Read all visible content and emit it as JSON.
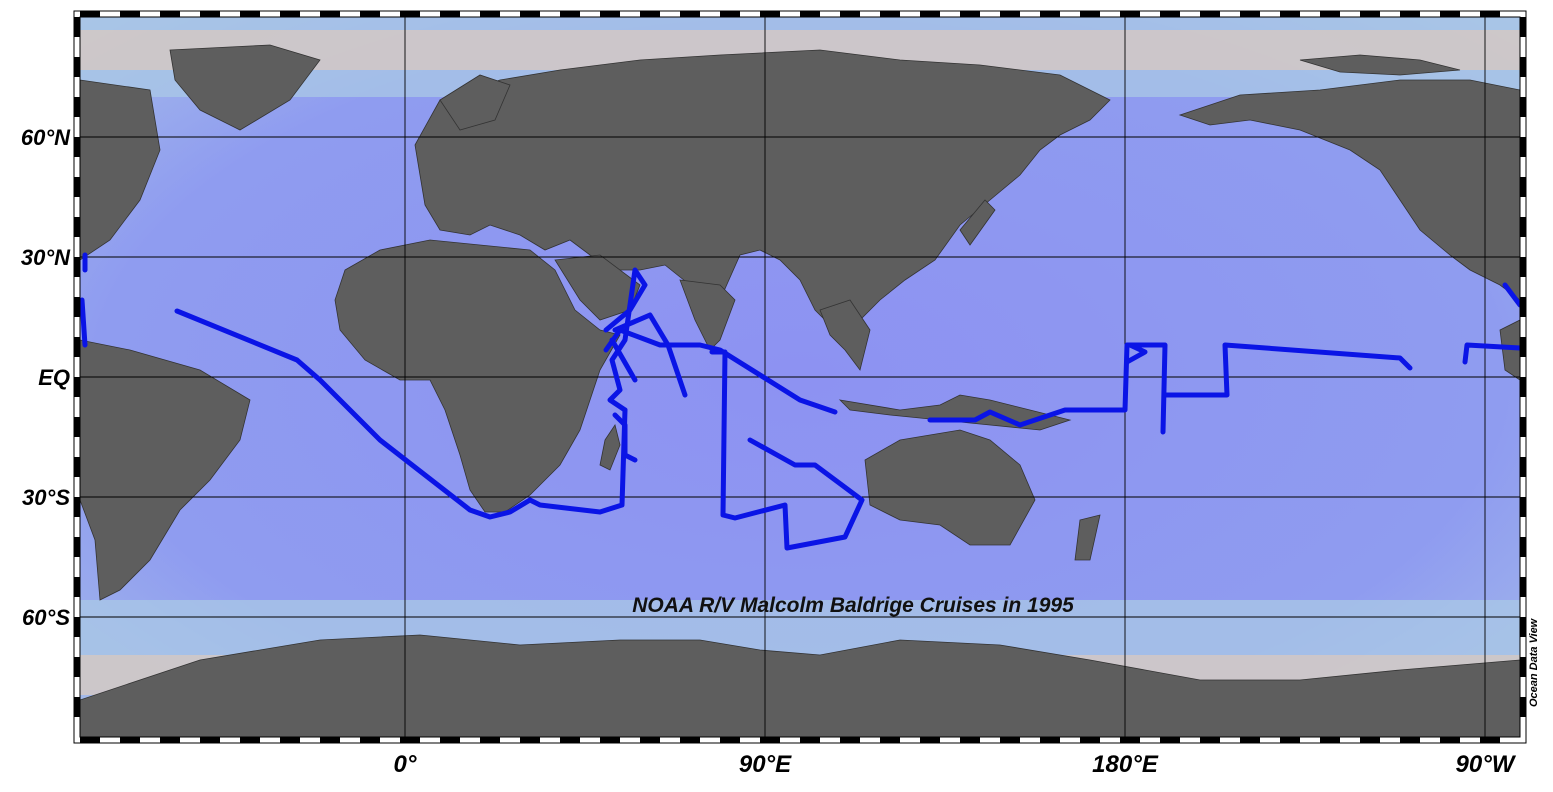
{
  "map": {
    "title": "NOAA R/V Malcolm Baldrige Cruises in 1995",
    "credit": "Ocean Data View",
    "projection": "equirectangular",
    "central_longitude": "Pacific-centered",
    "lon_range": [
      -80,
      -77
    ],
    "lat_range": [
      -90,
      90
    ],
    "lat_labels": [
      "60°N",
      "30°N",
      "EQ",
      "30°S",
      "60°S"
    ],
    "lon_labels": [
      "0°",
      "90°E",
      "180°E",
      "90°W"
    ],
    "colors": {
      "land": "#5e5e5e",
      "ocean_deep": "#8f96f0",
      "ocean_mid": "#96a6ee",
      "ocean_shelf": "#b8cde8",
      "ocean_shallow": "#cfc6c4",
      "track": "#0a14e6",
      "grid": "#000000"
    }
  }
}
